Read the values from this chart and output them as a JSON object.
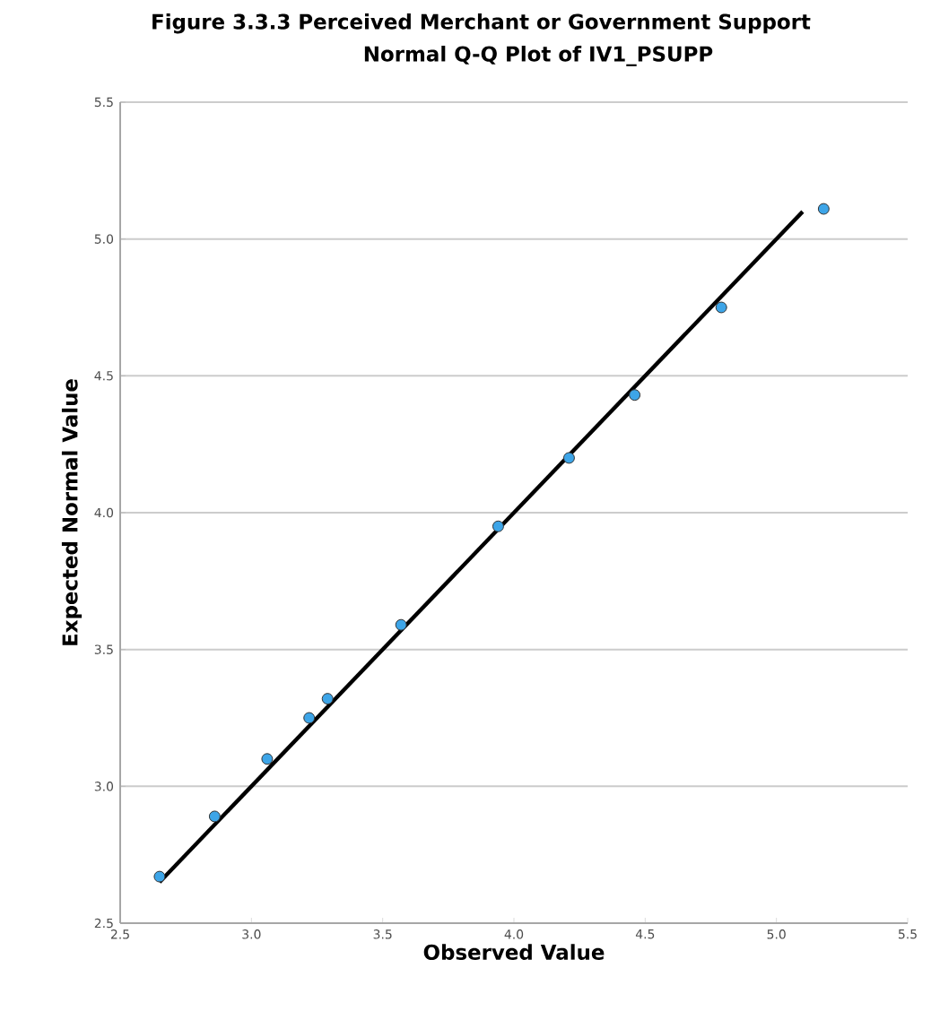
{
  "chart_data": {
    "type": "scatter",
    "title": "Figure 3.3.3 Perceived Merchant or Government Support",
    "subtitle": "Normal Q-Q Plot of IV1_PSUPP",
    "xlabel": "Observed Value",
    "ylabel": "Expected Normal Value",
    "xlim": [
      2.5,
      5.5
    ],
    "ylim": [
      2.5,
      5.5
    ],
    "xticks": [
      {
        "value": 2.5,
        "label": "2.5"
      },
      {
        "value": 3,
        "label": "3.0"
      },
      {
        "value": 3.5,
        "label": "3.5"
      },
      {
        "value": 4,
        "label": "4.0"
      },
      {
        "value": 4.5,
        "label": "4.5"
      },
      {
        "value": 5,
        "label": "5.0"
      },
      {
        "value": 5.5,
        "label": "5.5"
      }
    ],
    "yticks": [
      {
        "value": 2.5,
        "label": "2.5"
      },
      {
        "value": 3,
        "label": "3.0"
      },
      {
        "value": 3.5,
        "label": "3.5"
      },
      {
        "value": 4,
        "label": "4.0"
      },
      {
        "value": 4.5,
        "label": "4.5"
      },
      {
        "value": 5,
        "label": "5.0"
      },
      {
        "value": 5.5,
        "label": "5.5"
      }
    ],
    "grid": "y",
    "series": [
      {
        "type": "scatter",
        "marker": "circle",
        "color": "#3da5e8",
        "x": [
          2.65,
          2.86,
          3.06,
          3.22,
          3.29,
          3.57,
          3.94,
          4.21,
          4.46,
          4.79,
          5.18
        ],
        "values": [
          2.67,
          2.89,
          3.1,
          3.25,
          3.32,
          3.59,
          3.95,
          4.2,
          4.43,
          4.75,
          5.11
        ]
      },
      {
        "type": "line",
        "marker": "none",
        "color": "#000000",
        "x": [
          2.65,
          5.1
        ],
        "values": [
          2.65,
          5.1
        ]
      }
    ]
  }
}
